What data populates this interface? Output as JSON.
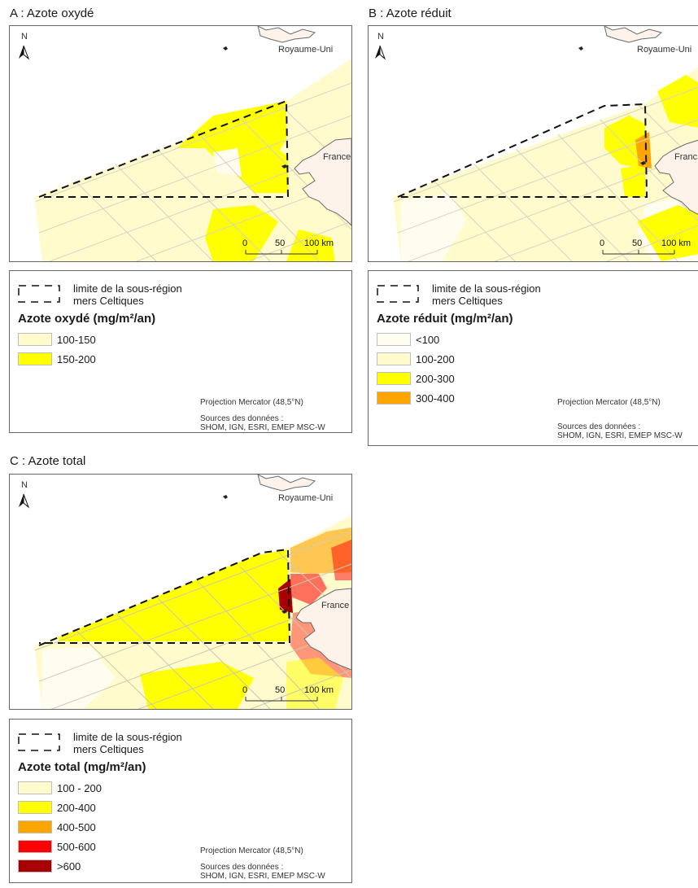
{
  "colors": {
    "sea": "#ffffff",
    "land": "#fdf3ea",
    "land_stroke": "#6a6a6a",
    "grid": "#d4d4c4",
    "c_lt100": "#fffdf0",
    "c_100_150": "#fffbcc",
    "c_100_200": "#fffbcc",
    "c_150_200": "#ffff00",
    "c_200_300": "#ffff00",
    "c_200_400": "#ffff00",
    "c_300_400": "#ffa500",
    "c_400_500": "#ffa500",
    "c_500_600": "#ff0000",
    "c_gt600": "#a80000"
  },
  "panels": [
    {
      "id": "A",
      "title": "A : Azote oxydé",
      "labels": {
        "uk": "Royaume-Uni",
        "france": "France",
        "north": "N"
      },
      "scale": {
        "ticks": [
          "0",
          "50",
          "100 km"
        ]
      },
      "legend": {
        "limit_line1": "limite de la sous-région",
        "limit_line2": "mers Celtiques",
        "heading": "Azote oxydé (mg/m²/an)",
        "items": [
          {
            "label": "100-150",
            "color": "#fffbcc"
          },
          {
            "label": "150-200",
            "color": "#ffff00"
          }
        ],
        "projection": "Projection Mercator (48,5°N)",
        "sources_label": "Sources des données :",
        "sources": "SHOM, IGN, ESRI, EMEP MSC-W"
      }
    },
    {
      "id": "B",
      "title": "B : Azote réduit",
      "labels": {
        "uk": "Royaume-Uni",
        "france": "Franc",
        "north": "N"
      },
      "scale": {
        "ticks": [
          "0",
          "50",
          "100 km"
        ]
      },
      "legend": {
        "limit_line1": "limite de la sous-région",
        "limit_line2": "mers Celtiques",
        "heading": "Azote réduit (mg/m²/an)",
        "items": [
          {
            "label": "<100",
            "color": "#fffdf0"
          },
          {
            "label": "100-200",
            "color": "#fffbcc"
          },
          {
            "label": "200-300",
            "color": "#ffff00"
          },
          {
            "label": "300-400",
            "color": "#ffa500"
          }
        ],
        "projection": "Projection Mercator (48,5°N)",
        "sources_label": "Sources des données :",
        "sources": "SHOM, IGN, ESRI, EMEP MSC-W"
      }
    },
    {
      "id": "C",
      "title": "C : Azote total",
      "labels": {
        "uk": "Royaume-Uni",
        "france": "France",
        "north": "N"
      },
      "scale": {
        "ticks": [
          "0",
          "50",
          "100 km"
        ]
      },
      "legend": {
        "limit_line1": "limite de la sous-région",
        "limit_line2": "mers Celtiques",
        "heading": "Azote total (mg/m²/an)",
        "items": [
          {
            "label": "100 - 200",
            "color": "#fffbcc"
          },
          {
            "label": "200-400",
            "color": "#ffff00"
          },
          {
            "label": "400-500",
            "color": "#ffa500"
          },
          {
            "label": "500-600",
            "color": "#ff0000"
          },
          {
            "label": ">600",
            "color": "#a80000"
          }
        ],
        "projection": "Projection Mercator (48,5°N)",
        "sources_label": "Sources des données :",
        "sources": "SHOM, IGN, ESRI, EMEP MSC-W"
      }
    }
  ]
}
